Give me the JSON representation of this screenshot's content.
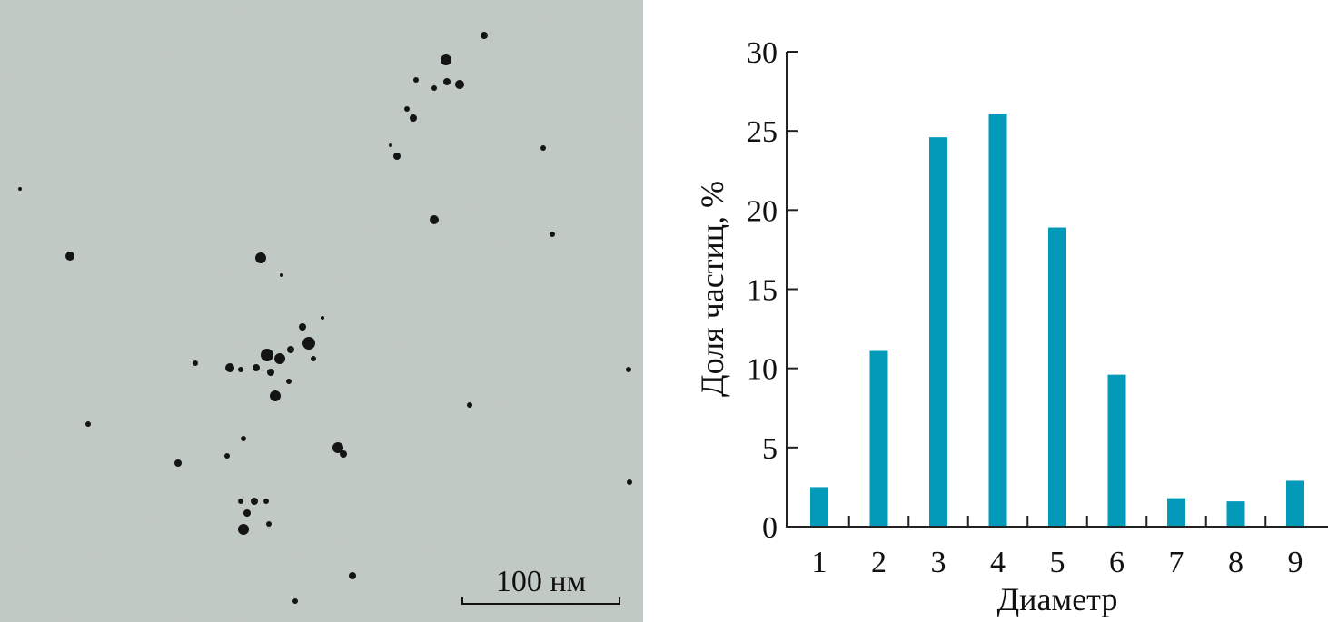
{
  "micrograph": {
    "scale_bar_label": "100 нм"
  },
  "chart_data": {
    "type": "bar",
    "categories": [
      "1",
      "2",
      "3",
      "4",
      "5",
      "6",
      "7",
      "8",
      "9"
    ],
    "values": [
      2.5,
      11.1,
      24.6,
      26.1,
      18.9,
      9.6,
      1.8,
      1.6,
      2.9
    ],
    "xlabel": "Диаметр",
    "ylabel": "Доля частиц, %",
    "ylim": [
      0,
      30
    ],
    "yticks": [
      "0",
      "5",
      "10",
      "15",
      "20",
      "25",
      "30"
    ],
    "grid": false,
    "bar_color": "#039ab9"
  }
}
